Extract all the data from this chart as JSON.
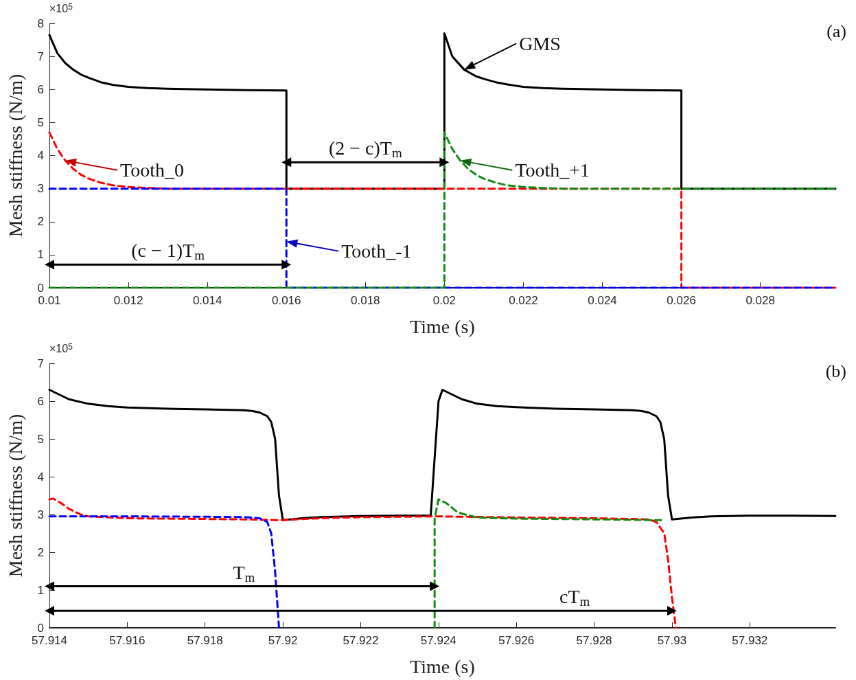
{
  "chart_data": [
    {
      "type": "line",
      "xlabel": "Time (s)",
      "ylabel": "Mesh stiffness (N/m)",
      "xlim": [
        0.01,
        0.0299
      ],
      "xticks": [
        0.01,
        0.012,
        0.014,
        0.016,
        0.018,
        0.02,
        0.022,
        0.024,
        0.026,
        0.028
      ],
      "ylim": [
        0,
        8
      ],
      "yticks": [
        0,
        1,
        2,
        3,
        4,
        5,
        6,
        7,
        8
      ],
      "marker": "none",
      "annotations": [
        "×10$^{5}$",
        "(a)",
        {
          "text": "(c − 1)T$_{m}$",
          "x": 0.013,
          "y": 0.7
        },
        {
          "text": "(2 − c)T$_{m}$",
          "x": 0.018,
          "y": 3.8
        },
        {
          "text": "GMS",
          "x": 0.0205,
          "y": 6.6
        },
        {
          "text": "Tooth_0",
          "x": 0.0104,
          "y": 3.85
        },
        {
          "text": "Tooth_-1",
          "x": 0.016,
          "y": 1.4
        },
        {
          "text": "Tooth_+1",
          "x": 0.0204,
          "y": 3.85
        }
      ],
      "series": [
        {
          "color": "#000000",
          "line_style": "solid",
          "x": [
            0.01,
            0.0102,
            0.0104,
            0.0106,
            0.0108,
            0.011,
            0.0113,
            0.0116,
            0.012,
            0.0125,
            0.013,
            0.014,
            0.015,
            0.016,
            0.016,
            0.02,
            0.02,
            0.0202,
            0.0205,
            0.0208,
            0.021,
            0.0213,
            0.0216,
            0.022,
            0.0225,
            0.023,
            0.024,
            0.025,
            0.026,
            0.026,
            0.0299
          ],
          "values": [
            7.65,
            7.1,
            6.8,
            6.6,
            6.45,
            6.35,
            6.22,
            6.14,
            6.08,
            6.04,
            6.02,
            6.0,
            5.98,
            5.97,
            3.0,
            3.0,
            7.7,
            7.0,
            6.6,
            6.4,
            6.32,
            6.22,
            6.15,
            6.08,
            6.04,
            6.02,
            6.0,
            5.98,
            5.97,
            3.0,
            3.0
          ]
        },
        {
          "color": "#ff0000",
          "line_style": "dashed",
          "x": [
            0.01,
            0.0102,
            0.0104,
            0.0106,
            0.0108,
            0.011,
            0.0113,
            0.0116,
            0.012,
            0.0125,
            0.013,
            0.026,
            0.026,
            0.0299
          ],
          "values": [
            4.7,
            4.2,
            3.85,
            3.6,
            3.42,
            3.3,
            3.18,
            3.1,
            3.05,
            3.02,
            3.0,
            3.0,
            0,
            0
          ]
        },
        {
          "color": "#0000ff",
          "line_style": "dashed",
          "x": [
            0.01,
            0.016,
            0.016,
            0.016,
            0.0299
          ],
          "values": [
            3,
            3,
            1.4,
            0,
            0
          ]
        },
        {
          "color": "#108a10",
          "line_style": "dashed",
          "x": [
            0.01,
            0.02,
            0.02,
            0.0202,
            0.0204,
            0.0206,
            0.0208,
            0.021,
            0.0213,
            0.0216,
            0.022,
            0.0225,
            0.023,
            0.0299
          ],
          "values": [
            0,
            0,
            4.7,
            4.2,
            3.85,
            3.6,
            3.42,
            3.3,
            3.18,
            3.1,
            3.05,
            3.02,
            3.0,
            3.0
          ]
        },
        {
          "color": "#000000",
          "line_style": "solid",
          "marker": "triangle",
          "x": [
            0.01,
            0.016
          ],
          "values": [
            0.7,
            0.7
          ]
        },
        {
          "color": "#000000",
          "line_style": "solid",
          "marker": "triangle",
          "x": [
            0.016,
            0.02
          ],
          "values": [
            3.8,
            3.8
          ]
        }
      ]
    },
    {
      "type": "line",
      "xlabel": "Time (s)",
      "ylabel": "Mesh stiffness (N/m)",
      "xlim": [
        57.914,
        57.9342
      ],
      "xticks": [
        57.914,
        57.916,
        57.918,
        57.92,
        57.922,
        57.924,
        57.926,
        57.928,
        57.93,
        57.932
      ],
      "ylim": [
        0,
        7
      ],
      "yticks": [
        0,
        1,
        2,
        3,
        4,
        5,
        6,
        7
      ],
      "marker": "none",
      "annotations": [
        "×10$^{5}$",
        "(b)",
        {
          "text": "T$_{m}$",
          "x": 57.919,
          "y": 1.1
        },
        {
          "text": "cT$_{m}$",
          "x": 57.9275,
          "y": 0.45
        }
      ],
      "series": [
        {
          "color": "#000000",
          "line_style": "solid",
          "x": [
            57.914,
            57.9142,
            57.9145,
            57.915,
            57.9155,
            57.916,
            57.917,
            57.918,
            57.919,
            57.9192,
            57.9194,
            57.9196,
            57.9197,
            57.9198,
            57.9199,
            57.92,
            57.9205,
            57.921,
            57.922,
            57.923,
            57.9238,
            57.9239,
            57.924,
            57.9241,
            57.9243,
            57.9246,
            57.925,
            57.9255,
            57.926,
            57.927,
            57.928,
            57.929,
            57.9292,
            57.9294,
            57.9296,
            57.9297,
            57.9298,
            57.9299,
            57.93,
            57.9305,
            57.931,
            57.932,
            57.933,
            57.9342
          ],
          "values": [
            6.3,
            6.2,
            6.05,
            5.93,
            5.87,
            5.83,
            5.8,
            5.78,
            5.76,
            5.74,
            5.7,
            5.6,
            5.45,
            5.0,
            3.5,
            2.85,
            2.9,
            2.93,
            2.96,
            2.97,
            2.97,
            4.5,
            6.0,
            6.3,
            6.2,
            6.05,
            5.93,
            5.87,
            5.84,
            5.8,
            5.78,
            5.76,
            5.74,
            5.7,
            5.6,
            5.45,
            5.0,
            3.5,
            2.87,
            2.92,
            2.95,
            2.97,
            2.97,
            2.96
          ]
        },
        {
          "color": "#ff0000",
          "line_style": "dashed",
          "x": [
            57.914,
            57.9141,
            57.9143,
            57.9145,
            57.9148,
            57.915,
            57.916,
            57.918,
            57.919,
            57.9195,
            57.9199,
            57.921,
            57.922,
            57.924,
            57.926,
            57.928,
            57.929,
            57.9294,
            57.9296,
            57.9298,
            57.9299,
            57.93,
            57.9301
          ],
          "values": [
            3.4,
            3.42,
            3.3,
            3.15,
            3.0,
            2.95,
            2.9,
            2.88,
            2.87,
            2.86,
            2.85,
            2.9,
            2.93,
            2.95,
            2.92,
            2.9,
            2.88,
            2.87,
            2.8,
            2.5,
            1.8,
            0.8,
            0
          ]
        },
        {
          "color": "#0000ff",
          "line_style": "dashed",
          "x": [
            57.914,
            57.916,
            57.918,
            57.919,
            57.9194,
            57.9196,
            57.9197,
            57.9198,
            57.9199
          ],
          "values": [
            2.95,
            2.95,
            2.94,
            2.93,
            2.9,
            2.8,
            2.5,
            1.5,
            0
          ]
        },
        {
          "color": "#108a10",
          "line_style": "dashed",
          "x": [
            57.9239,
            57.9239,
            57.924,
            57.9242,
            57.9245,
            57.925,
            57.926,
            57.928,
            57.929,
            57.9295,
            57.9298
          ],
          "values": [
            0,
            2.9,
            3.4,
            3.3,
            3.05,
            2.92,
            2.89,
            2.87,
            2.86,
            2.85,
            2.85
          ]
        },
        {
          "color": "#000000",
          "line_style": "solid",
          "marker": "triangle",
          "x": [
            57.914,
            57.9239
          ],
          "values": [
            1.1,
            1.1
          ]
        },
        {
          "color": "#000000",
          "line_style": "solid",
          "marker": "triangle",
          "x": [
            57.914,
            57.93
          ],
          "values": [
            0.45,
            0.45
          ]
        }
      ]
    }
  ]
}
